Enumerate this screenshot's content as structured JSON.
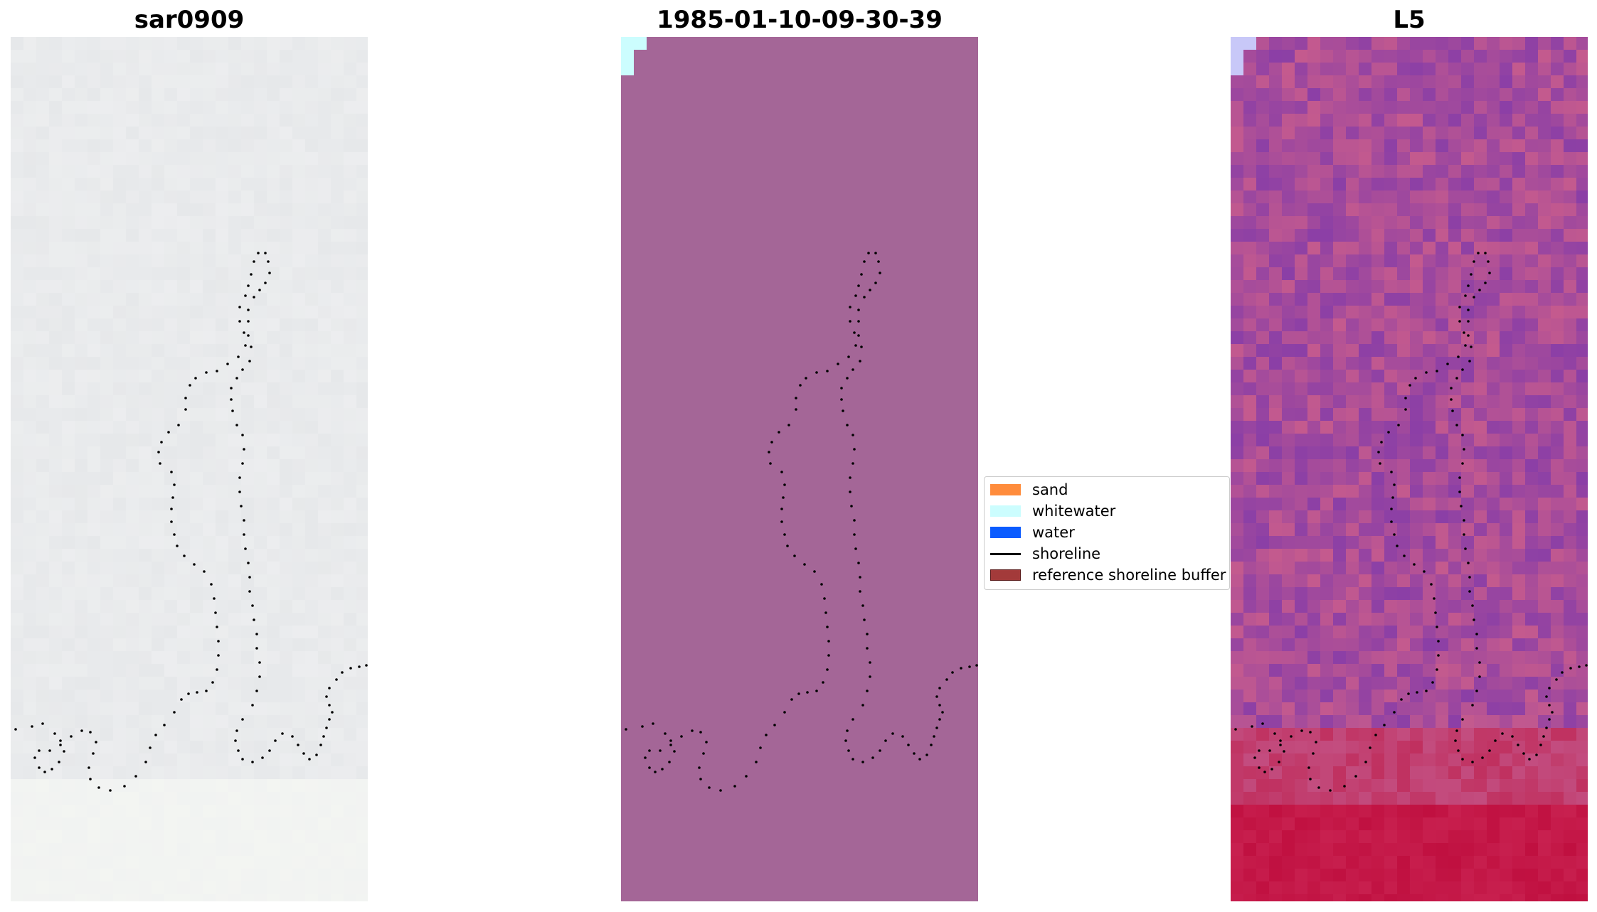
{
  "panels": [
    {
      "title": "sar0909"
    },
    {
      "title": "1985-01-10-09-30-39"
    },
    {
      "title": "L5"
    }
  ],
  "legend": {
    "items": [
      {
        "label": "sand",
        "kind": "patch",
        "color": "#ff8c3c",
        "edge": "#ff8c3c"
      },
      {
        "label": "whitewater",
        "kind": "patch",
        "color": "#ccfdfe",
        "edge": "#ccfdfe"
      },
      {
        "label": "water",
        "kind": "patch",
        "color": "#0a5bff",
        "edge": "#0a5bff"
      },
      {
        "label": "shoreline",
        "kind": "line",
        "color": "#000000"
      },
      {
        "label": "reference shoreline buffer",
        "kind": "patch",
        "color": "#a33a3a",
        "edge": "#5a1a1a"
      }
    ]
  },
  "colors": {
    "panel1_background": "#e7e9ea",
    "panel2_classification": "#a46697",
    "panel2_whitewater": "#ccfdfe",
    "panel3_purple": "#8b3fa6",
    "panel3_pink": "#c45a8e",
    "panel3_red": "#c01040",
    "shoreline_dots": "#000000"
  }
}
